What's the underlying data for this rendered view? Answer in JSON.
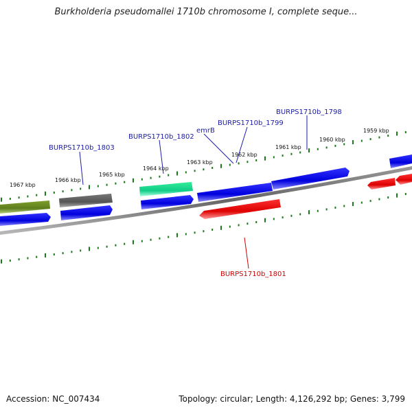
{
  "title": "Burkholderia pseudomallei 1710b chromosome I, complete seque...",
  "footer": {
    "accession": "Accession: NC_007434",
    "summary": "Topology: circular; Length: 4,126,292 bp; Genes: 3,799"
  },
  "kbp_labels": [
    "1967 kbp",
    "1966 kbp",
    "1965 kbp",
    "1964 kbp",
    "1963 kbp",
    "1962 kbp",
    "1961 kbp",
    "1960 kbp",
    "1959 kbp"
  ],
  "gene_labels": {
    "burps_1803": "BURPS1710b_1803",
    "burps_1802": "BURPS1710b_1802",
    "emrb": "emrB",
    "burps_1799": "BURPS1710b_1799",
    "burps_1798": "BURPS1710b_1798",
    "burps_1801": "BURPS1710b_1801"
  },
  "colors": {
    "forward_gene": "#0000ee",
    "reverse_gene": "#ee0000",
    "olive_gene": "#6b8e23",
    "gray_gene": "#666666",
    "teal_gene": "#22dd99",
    "tick": "#1a7a1a",
    "backbone": "#777777",
    "label_blue": "#1a1aa8",
    "label_red": "#cc0000"
  }
}
